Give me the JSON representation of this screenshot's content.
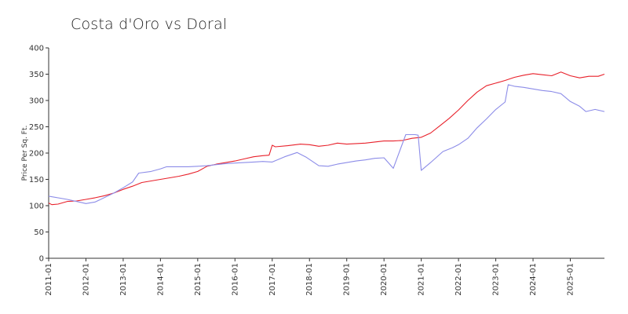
{
  "chart_data": {
    "type": "line",
    "title": "Costa d'Oro vs Doral",
    "xlabel": "",
    "ylabel": "Price Per Sq. Ft.",
    "ylim": [
      0,
      400
    ],
    "yticks": [
      0,
      50,
      100,
      150,
      200,
      250,
      300,
      350,
      400
    ],
    "xticks": [
      "2011-01",
      "2012-01",
      "2013-01",
      "2014-01",
      "2015-01",
      "2016-01",
      "2017-01",
      "2018-01",
      "2019-01",
      "2020-01",
      "2021-01",
      "2022-01",
      "2023-01",
      "2024-01",
      "2025-01"
    ],
    "grid": false,
    "legend": "none",
    "series": [
      {
        "color": "#e8202a",
        "points": [
          [
            "2011-01",
            105
          ],
          [
            "2011-02",
            102
          ],
          [
            "2011-04",
            103
          ],
          [
            "2011-07",
            108
          ],
          [
            "2011-10",
            109
          ],
          [
            "2012-01",
            112
          ],
          [
            "2012-04",
            115
          ],
          [
            "2012-07",
            119
          ],
          [
            "2012-10",
            124
          ],
          [
            "2013-01",
            131
          ],
          [
            "2013-04",
            137
          ],
          [
            "2013-07",
            144
          ],
          [
            "2013-10",
            147
          ],
          [
            "2014-01",
            150
          ],
          [
            "2014-04",
            153
          ],
          [
            "2014-07",
            156
          ],
          [
            "2014-10",
            160
          ],
          [
            "2015-01",
            165
          ],
          [
            "2015-04",
            175
          ],
          [
            "2015-07",
            179
          ],
          [
            "2015-10",
            182
          ],
          [
            "2016-01",
            185
          ],
          [
            "2016-04",
            189
          ],
          [
            "2016-07",
            193
          ],
          [
            "2016-10",
            195
          ],
          [
            "2016-12",
            196
          ],
          [
            "2017-01",
            215
          ],
          [
            "2017-02",
            212
          ],
          [
            "2017-06",
            214
          ],
          [
            "2017-10",
            217
          ],
          [
            "2018-01",
            216
          ],
          [
            "2018-04",
            213
          ],
          [
            "2018-07",
            215
          ],
          [
            "2018-10",
            219
          ],
          [
            "2019-01",
            217
          ],
          [
            "2019-04",
            218
          ],
          [
            "2019-07",
            219
          ],
          [
            "2019-10",
            221
          ],
          [
            "2020-01",
            223
          ],
          [
            "2020-04",
            223
          ],
          [
            "2020-07",
            224
          ],
          [
            "2020-10",
            228
          ],
          [
            "2021-01",
            230
          ],
          [
            "2021-04",
            238
          ],
          [
            "2021-07",
            252
          ],
          [
            "2021-10",
            266
          ],
          [
            "2022-01",
            282
          ],
          [
            "2022-04",
            300
          ],
          [
            "2022-07",
            316
          ],
          [
            "2022-10",
            328
          ],
          [
            "2023-01",
            333
          ],
          [
            "2023-04",
            338
          ],
          [
            "2023-07",
            344
          ],
          [
            "2023-10",
            348
          ],
          [
            "2024-01",
            351
          ],
          [
            "2024-04",
            349
          ],
          [
            "2024-07",
            347
          ],
          [
            "2024-10",
            354
          ],
          [
            "2025-01",
            347
          ],
          [
            "2025-04",
            343
          ],
          [
            "2025-07",
            346
          ],
          [
            "2025-10",
            346
          ],
          [
            "2025-12",
            350
          ]
        ]
      },
      {
        "color": "#8c8ce8",
        "points": [
          [
            "2011-01",
            118
          ],
          [
            "2011-07",
            112
          ],
          [
            "2012-01",
            104
          ],
          [
            "2012-04",
            107
          ],
          [
            "2012-10",
            124
          ],
          [
            "2013-01",
            134
          ],
          [
            "2013-04",
            145
          ],
          [
            "2013-06",
            162
          ],
          [
            "2013-10",
            165
          ],
          [
            "2014-01",
            170
          ],
          [
            "2014-03",
            174
          ],
          [
            "2014-07",
            174
          ],
          [
            "2014-10",
            174
          ],
          [
            "2015-01",
            175
          ],
          [
            "2015-04",
            176
          ],
          [
            "2015-07",
            178
          ],
          [
            "2015-10",
            180
          ],
          [
            "2016-01",
            181
          ],
          [
            "2016-04",
            182
          ],
          [
            "2016-07",
            183
          ],
          [
            "2016-10",
            184
          ],
          [
            "2017-01",
            183
          ],
          [
            "2017-05",
            193
          ],
          [
            "2017-09",
            201
          ],
          [
            "2017-12",
            192
          ],
          [
            "2018-04",
            176
          ],
          [
            "2018-07",
            175
          ],
          [
            "2018-10",
            179
          ],
          [
            "2019-01",
            182
          ],
          [
            "2019-04",
            185
          ],
          [
            "2019-07",
            187
          ],
          [
            "2019-10",
            190
          ],
          [
            "2020-01",
            191
          ],
          [
            "2020-04",
            171
          ],
          [
            "2020-08",
            235
          ],
          [
            "2020-11",
            235
          ],
          [
            "2020-12",
            234
          ],
          [
            "2021-01",
            167
          ],
          [
            "2021-04",
            182
          ],
          [
            "2021-08",
            203
          ],
          [
            "2021-11",
            210
          ],
          [
            "2022-01",
            216
          ],
          [
            "2022-04",
            228
          ],
          [
            "2022-07",
            248
          ],
          [
            "2022-10",
            265
          ],
          [
            "2023-01",
            283
          ],
          [
            "2023-04",
            297
          ],
          [
            "2023-05",
            330
          ],
          [
            "2023-07",
            327
          ],
          [
            "2023-10",
            325
          ],
          [
            "2024-01",
            322
          ],
          [
            "2024-04",
            319
          ],
          [
            "2024-07",
            317
          ],
          [
            "2024-10",
            313
          ],
          [
            "2025-01",
            298
          ],
          [
            "2025-04",
            289
          ],
          [
            "2025-06",
            279
          ],
          [
            "2025-09",
            283
          ],
          [
            "2025-12",
            279
          ]
        ]
      }
    ]
  }
}
